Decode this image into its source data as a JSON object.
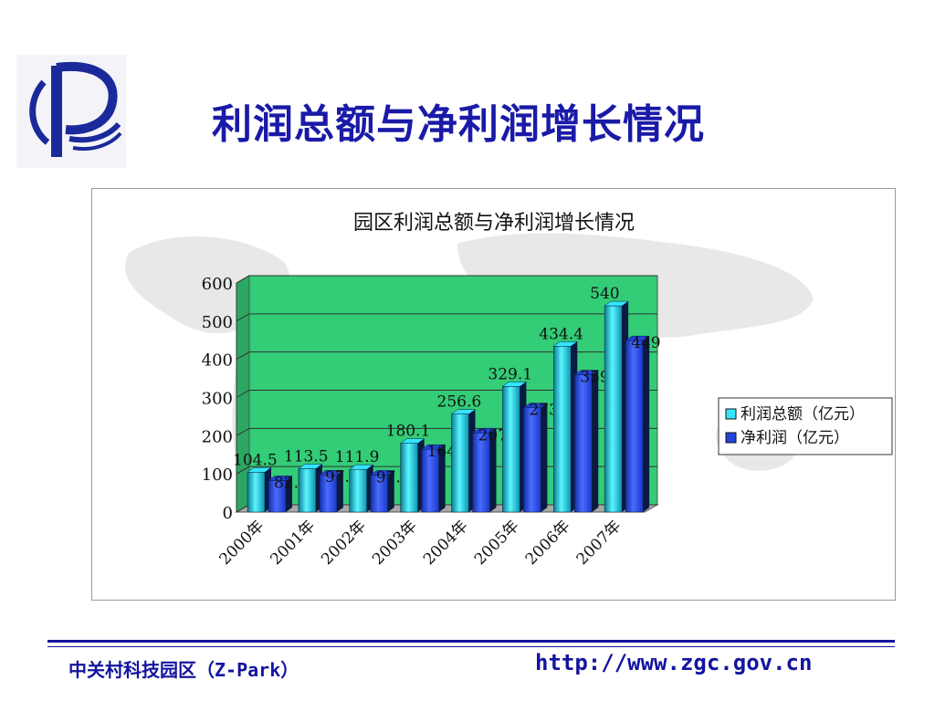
{
  "slide": {
    "title": "利润总额与净利润增长情况"
  },
  "footer": {
    "org": "中关村科技园区（Z-Park）",
    "url": "http://www.zgc.gov.cn"
  },
  "colors": {
    "title": "#1a1aa8",
    "plot_bg": "#33cc77",
    "series1": "#33e6ff",
    "series2": "#2244dd",
    "footer": "#1414a0"
  },
  "chart_data": {
    "type": "bar",
    "title": "园区利润总额与净利润增长情况",
    "categories": [
      "2000年",
      "2001年",
      "2002年",
      "2003年",
      "2004年",
      "2005年",
      "2006年",
      "2007年"
    ],
    "series": [
      {
        "name": "利润总额（亿元）",
        "values": [
          104.5,
          113.5,
          111.9,
          180.1,
          256.6,
          329.1,
          434.4,
          540
        ],
        "labels": [
          "104.5",
          "113.5",
          "111.9",
          "180.1",
          "256.6",
          "329.1",
          "434.4",
          "540"
        ]
      },
      {
        "name": "净利润（亿元）",
        "values": [
          82.7,
          97.5,
          97.1,
          164.5,
          207.1,
          273.4,
          359.7,
          449
        ],
        "labels": [
          "82.7",
          "97.5",
          "97.1",
          "164.5",
          "207.1",
          "273.4",
          "359.7",
          "449"
        ]
      }
    ],
    "ylim": [
      0,
      600
    ],
    "yticks": [
      0,
      100,
      200,
      300,
      400,
      500,
      600
    ],
    "grid": true,
    "legend": "right",
    "three_d": true
  }
}
